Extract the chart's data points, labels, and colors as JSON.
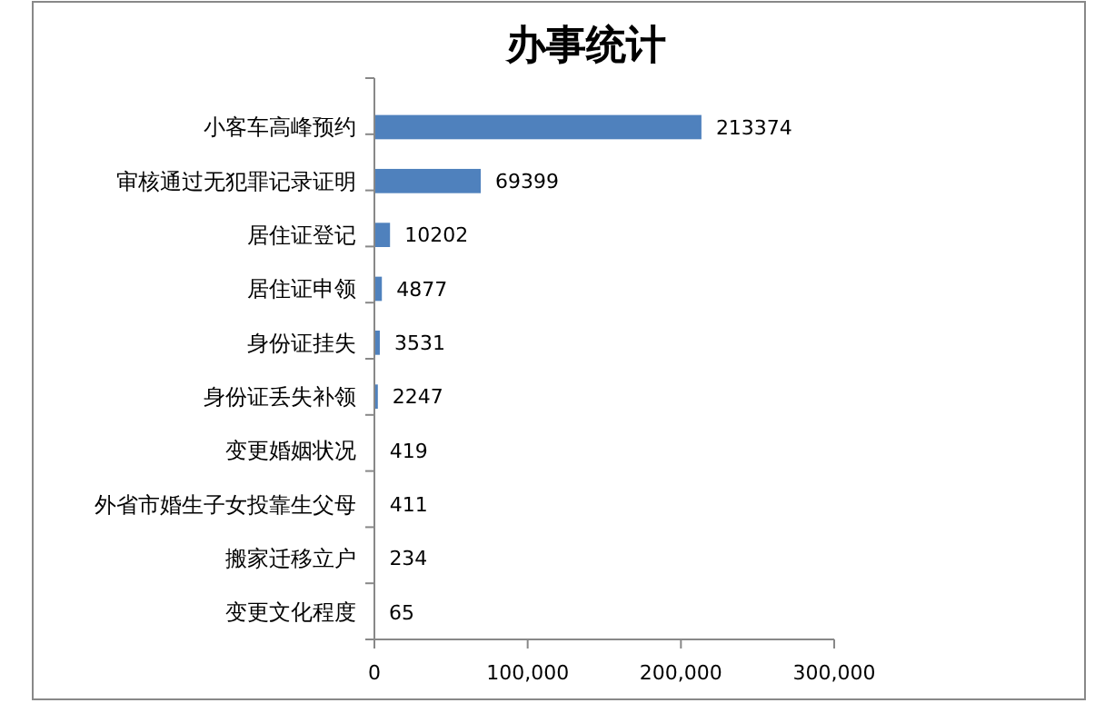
{
  "chart_data": {
    "type": "bar",
    "orientation": "horizontal",
    "title": "办事统计",
    "categories": [
      "小客车高峰预约",
      "审核通过无犯罪记录证明",
      "居住证登记",
      "居住证申领",
      "身份证挂失",
      "身份证丢失补领",
      "变更婚姻状况",
      "外省市婚生子女投靠生父母",
      "搬家迁移立户",
      "变更文化程度"
    ],
    "values": [
      213374,
      69399,
      10202,
      4877,
      3531,
      2247,
      419,
      411,
      234,
      65
    ],
    "color": "#4f81bd",
    "xlim": [
      0,
      300000
    ],
    "xticks": [
      0,
      {
        "value": 100000,
        "label": "100,000"
      },
      {
        "value": 200000,
        "label": "200,000"
      },
      {
        "value": 300000,
        "label": "300,000"
      }
    ],
    "data_labels": true
  }
}
